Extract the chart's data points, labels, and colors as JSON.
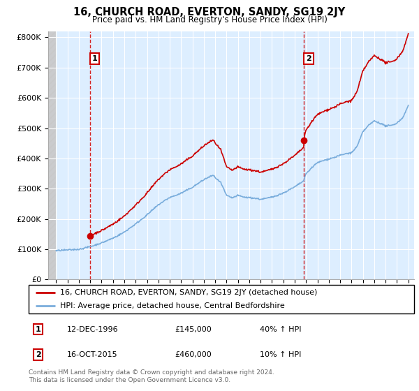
{
  "title": "16, CHURCH ROAD, EVERTON, SANDY, SG19 2JY",
  "subtitle": "Price paid vs. HM Land Registry's House Price Index (HPI)",
  "hpi_label": "HPI: Average price, detached house, Central Bedfordshire",
  "property_label": "16, CHURCH ROAD, EVERTON, SANDY, SG19 2JY (detached house)",
  "t1_date": "12-DEC-1996",
  "t1_price": 145000,
  "t1_hpi": "40% ↑ HPI",
  "t1_year": 1996.958,
  "t2_date": "16-OCT-2015",
  "t2_price": 460000,
  "t2_hpi": "10% ↑ HPI",
  "t2_year": 2015.792,
  "ylabel_ticks": [
    "£0",
    "£100K",
    "£200K",
    "£300K",
    "£400K",
    "£500K",
    "£600K",
    "£700K",
    "£800K"
  ],
  "ytick_values": [
    0,
    100000,
    200000,
    300000,
    400000,
    500000,
    600000,
    700000,
    800000
  ],
  "ylim": [
    0,
    820000
  ],
  "xlim_left": 1993.3,
  "xlim_right": 2025.5,
  "hpi_color": "#7aaddc",
  "property_color": "#cc0000",
  "chart_bg": "#ddeeff",
  "footnote": "Contains HM Land Registry data © Crown copyright and database right 2024.\nThis data is licensed under the Open Government Licence v3.0.",
  "grid_color": "#ffffff",
  "hatch_end": 1994.0
}
